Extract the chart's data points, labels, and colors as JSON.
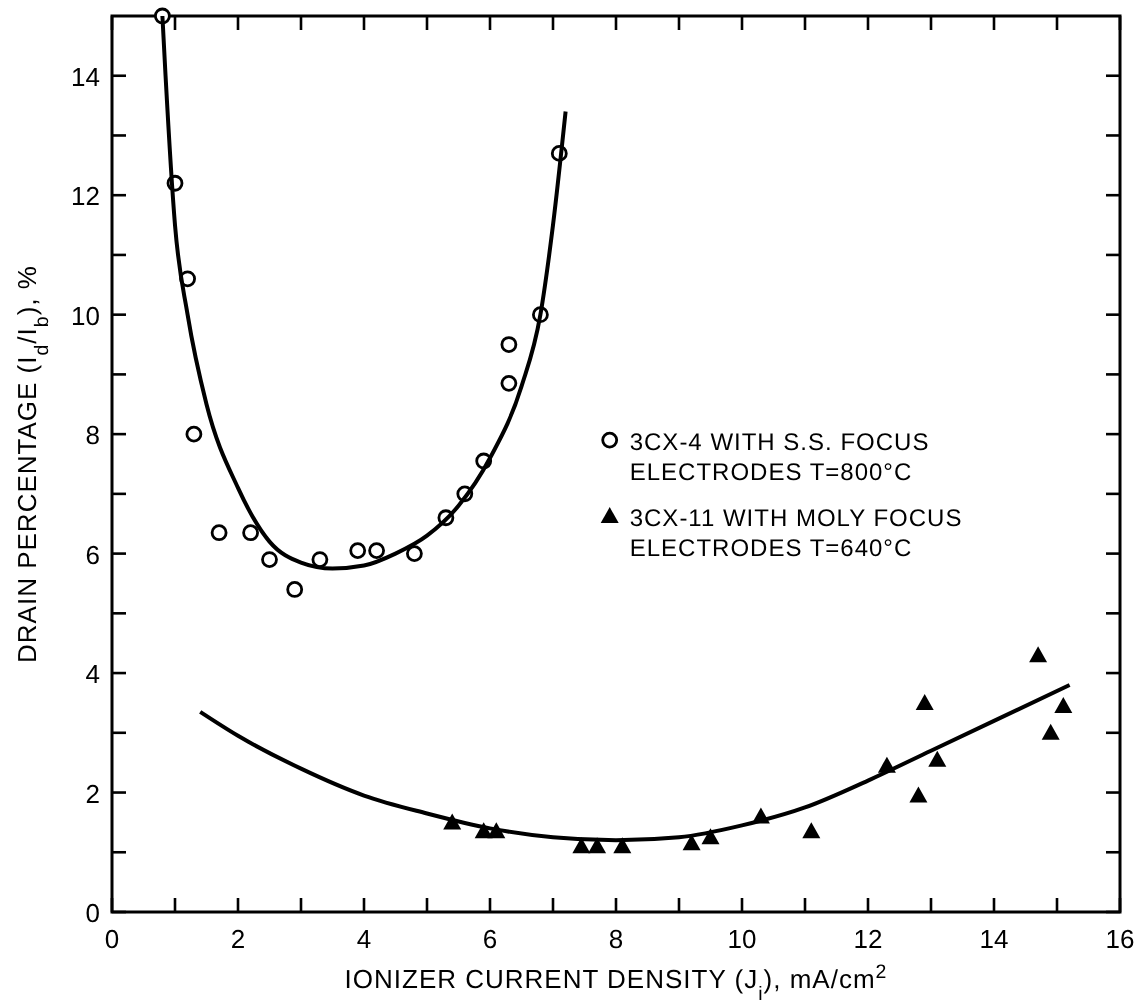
{
  "chart_data": {
    "type": "scatter",
    "xlabel": "IONIZER CURRENT DENSITY (J$_{i}$), mA/cm$^{2}$",
    "ylabel": "DRAIN PERCENTAGE (I$_{d}$/I$_{b}$), %",
    "xlim": [
      0,
      16
    ],
    "ylim": [
      0,
      15
    ],
    "xticks": [
      0,
      {
        "value": 1,
        "label": null
      },
      2,
      {
        "value": 3,
        "label": null
      },
      4,
      {
        "value": 5,
        "label": null
      },
      6,
      {
        "value": 7,
        "label": null
      },
      8,
      {
        "value": 9,
        "label": null
      },
      10,
      {
        "value": 11,
        "label": null
      },
      12,
      {
        "value": 13,
        "label": null
      },
      14,
      {
        "value": 15,
        "label": null
      },
      16
    ],
    "yticks": [
      0,
      {
        "value": 1,
        "label": null
      },
      2,
      {
        "value": 3,
        "label": null
      },
      4,
      {
        "value": 5,
        "label": null
      },
      6,
      {
        "value": 7,
        "label": null
      },
      8,
      {
        "value": 9,
        "label": null
      },
      10,
      {
        "value": 11,
        "label": null
      },
      12,
      {
        "value": 13,
        "label": null
      },
      14
    ],
    "grid": false,
    "legend": "right",
    "series": [
      {
        "name": "3CX-4 WITH S.S. FOCUS ELECTRODES T=800°C",
        "color": "#000000",
        "marker": "circle",
        "x": [
          0.8,
          1.0,
          1.2,
          1.3,
          1.7,
          2.2,
          2.5,
          2.9,
          3.3,
          3.9,
          4.2,
          4.8,
          5.3,
          5.6,
          5.9,
          6.3,
          6.3,
          6.8,
          7.1
        ],
        "values": [
          15,
          12.2,
          10.6,
          8.0,
          6.35,
          6.35,
          5.9,
          5.4,
          5.9,
          6.05,
          6.05,
          6.0,
          6.6,
          7.0,
          7.55,
          8.85,
          9.5,
          10.0,
          12.7
        ]
      },
      {
        "name": "3CX-11 WITH MOLY FOCUS ELECTRODES T=640°C",
        "color": "#000000",
        "marker": "triangle",
        "x": [
          5.4,
          5.9,
          6.1,
          7.45,
          7.7,
          8.1,
          9.2,
          9.5,
          10.3,
          11.1,
          12.3,
          12.8,
          12.9,
          13.1,
          14.7,
          14.9,
          15.1
        ],
        "values": [
          1.5,
          1.35,
          1.35,
          1.1,
          1.1,
          1.1,
          1.15,
          1.25,
          1.6,
          1.35,
          2.45,
          1.95,
          3.5,
          2.55,
          4.3,
          3.0,
          3.45
        ]
      },
      {
        "type": "line",
        "color": "#000000",
        "marker": "none",
        "x": [
          0.8,
          0.85,
          1.0,
          1.2,
          1.5,
          2,
          2.5,
          3,
          3.5,
          4,
          4.5,
          5,
          5.5,
          6,
          6.5,
          6.8,
          7.0,
          7.2
        ],
        "values": [
          15,
          14,
          11.5,
          10,
          8.5,
          7.1,
          6.2,
          5.85,
          5.75,
          5.8,
          6.0,
          6.3,
          6.8,
          7.6,
          8.8,
          10,
          11.5,
          13.4
        ]
      },
      {
        "type": "line",
        "color": "#000000",
        "marker": "none",
        "x": [
          1.4,
          2,
          3,
          4,
          5,
          6,
          7,
          8,
          9,
          10,
          11,
          12,
          13,
          14,
          15.2
        ],
        "values": [
          3.35,
          2.95,
          2.4,
          1.95,
          1.65,
          1.4,
          1.25,
          1.2,
          1.25,
          1.45,
          1.75,
          2.2,
          2.7,
          3.2,
          3.8
        ]
      }
    ]
  }
}
